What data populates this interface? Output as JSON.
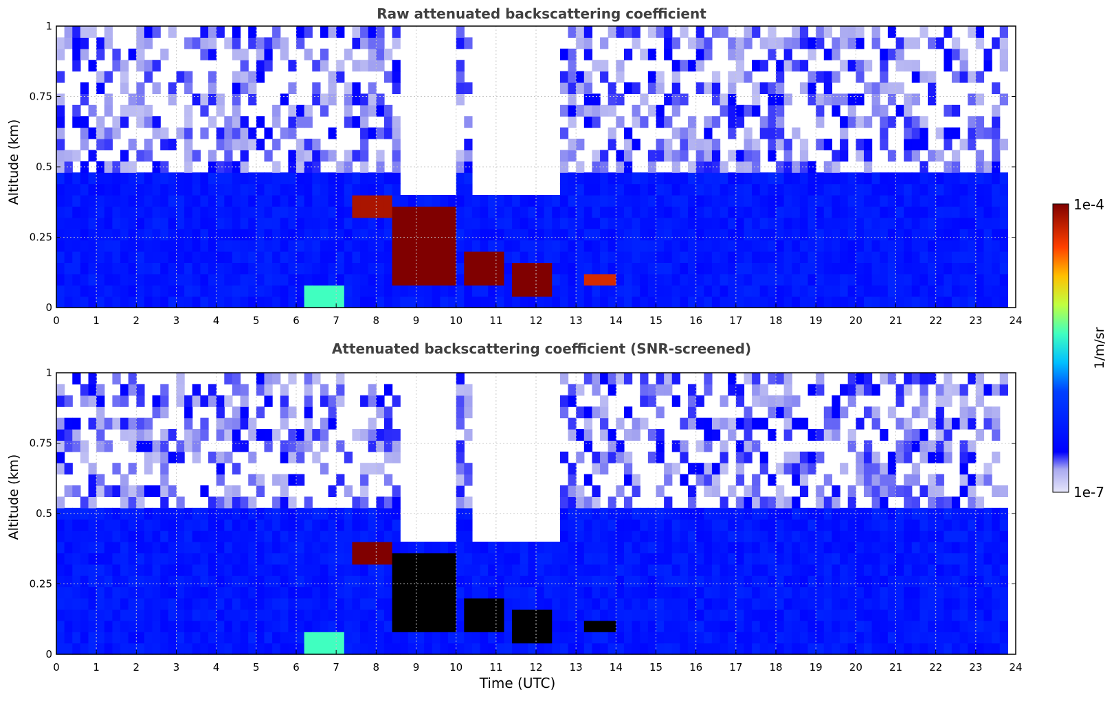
{
  "chart_data": [
    {
      "type": "heatmap",
      "title": "Raw attenuated backscattering coefficient",
      "ylabel": "Altitude (km)",
      "xlabel": "",
      "xlim": [
        0,
        24
      ],
      "ylim": [
        0,
        1
      ],
      "x_ticks": [
        "0",
        "1",
        "2",
        "3",
        "4",
        "5",
        "6",
        "7",
        "8",
        "9",
        "10",
        "11",
        "12",
        "13",
        "14",
        "15",
        "16",
        "17",
        "18",
        "19",
        "20",
        "21",
        "22",
        "23",
        "24"
      ],
      "y_ticks": [
        "0",
        "0.25",
        "0.5",
        "0.75",
        "1"
      ],
      "grid": true,
      "data_end_hour": 23.6,
      "background_top_km": 0.45,
      "features": [
        {
          "kind": "aerosol_layer",
          "t0": 7.4,
          "t1": 8.3,
          "alt_low": 0.32,
          "alt_high": 0.38,
          "level": 0.95
        },
        {
          "kind": "cloud",
          "t0": 8.4,
          "t1": 9.8,
          "alt_low": 0.05,
          "alt_high": 0.36,
          "level": 1.0
        },
        {
          "kind": "cloud",
          "t0": 10.0,
          "t1": 11.0,
          "alt_low": 0.05,
          "alt_high": 0.18,
          "level": 1.0
        },
        {
          "kind": "cloud",
          "t0": 11.2,
          "t1": 12.2,
          "alt_low": 0.02,
          "alt_high": 0.15,
          "level": 1.0
        },
        {
          "kind": "cloud",
          "t0": 13.0,
          "t1": 13.9,
          "alt_low": 0.06,
          "alt_high": 0.12,
          "level": 0.9
        },
        {
          "kind": "aerosol_bubble",
          "t0": 6.2,
          "t1": 7.2,
          "alt_low": 0.0,
          "alt_high": 0.08,
          "level": 0.55
        }
      ],
      "no_signal_gaps": [
        [
          8.5,
          9.8
        ],
        [
          10.3,
          12.5
        ]
      ]
    },
    {
      "type": "heatmap",
      "title": "Attenuated backscattering coefficient (SNR-screened)",
      "ylabel": "Altitude (km)",
      "xlabel": "Time (UTC)",
      "xlim": [
        0,
        24
      ],
      "ylim": [
        0,
        1
      ],
      "x_ticks": [
        "0",
        "1",
        "2",
        "3",
        "4",
        "5",
        "6",
        "7",
        "8",
        "9",
        "10",
        "11",
        "12",
        "13",
        "14",
        "15",
        "16",
        "17",
        "18",
        "19",
        "20",
        "21",
        "22",
        "23",
        "24"
      ],
      "y_ticks": [
        "0",
        "0.25",
        "0.5",
        "0.75",
        "1"
      ],
      "grid": true,
      "data_end_hour": 23.6,
      "background_top_km": 0.5,
      "features": [
        {
          "kind": "aerosol_layer",
          "t0": 7.4,
          "t1": 8.3,
          "alt_low": 0.32,
          "alt_high": 0.38,
          "level": 1.0
        },
        {
          "kind": "cloud_saturated",
          "t0": 8.4,
          "t1": 9.8,
          "alt_low": 0.05,
          "alt_high": 0.36,
          "level": 1.0
        },
        {
          "kind": "cloud_saturated",
          "t0": 10.0,
          "t1": 11.0,
          "alt_low": 0.05,
          "alt_high": 0.18,
          "level": 1.0
        },
        {
          "kind": "cloud_saturated",
          "t0": 11.2,
          "t1": 12.2,
          "alt_low": 0.02,
          "alt_high": 0.15,
          "level": 1.0
        },
        {
          "kind": "cloud_saturated",
          "t0": 13.0,
          "t1": 13.9,
          "alt_low": 0.06,
          "alt_high": 0.12,
          "level": 1.0
        },
        {
          "kind": "aerosol_bubble",
          "t0": 6.2,
          "t1": 7.2,
          "alt_low": 0.0,
          "alt_high": 0.08,
          "level": 0.55
        }
      ],
      "no_signal_gaps": [
        [
          8.5,
          9.8
        ],
        [
          10.3,
          12.5
        ]
      ]
    }
  ],
  "colorbar": {
    "label": "1/m/sr",
    "max_label": "1e-4",
    "min_label": "1e-7",
    "scale": "log",
    "colormap": "jet",
    "low_color": "#e6e6fa",
    "high_color": "#800000"
  }
}
